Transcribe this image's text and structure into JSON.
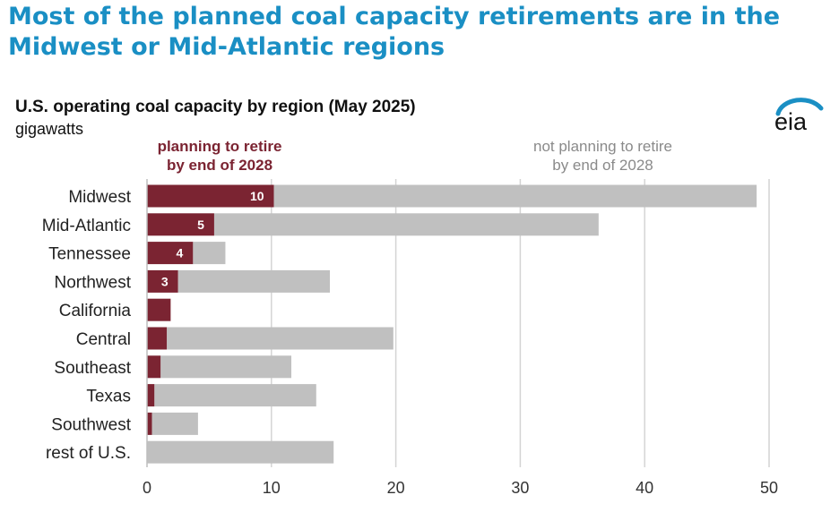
{
  "headline": "Most of the planned coal capacity retirements are in the Midwest or Mid-Atlantic regions",
  "logo_text": "eia",
  "chart_data": {
    "type": "bar",
    "orientation": "horizontal",
    "stacked": true,
    "title": "U.S. operating coal capacity by region (May 2025)",
    "subtitle": "gigawatts",
    "categories": [
      "Midwest",
      "Mid-Atlantic",
      "Tennessee",
      "Northwest",
      "California",
      "Central",
      "Southeast",
      "Texas",
      "Southwest",
      "rest of U.S."
    ],
    "series": [
      {
        "name": "planning to retire by end of 2028",
        "legend_lines": [
          "planning to retire",
          "by end of 2028"
        ],
        "color": "#7b2432",
        "values": [
          10.2,
          5.4,
          3.7,
          2.5,
          1.9,
          1.6,
          1.1,
          0.6,
          0.4,
          0
        ]
      },
      {
        "name": "not planning to retire by end of 2028",
        "legend_lines": [
          "not planning to retire",
          "by end of 2028"
        ],
        "color": "#c0c0c0",
        "values": [
          38.8,
          30.9,
          2.6,
          12.2,
          0,
          18.2,
          10.5,
          13.0,
          3.7,
          15.0
        ]
      }
    ],
    "data_labels": [
      "10",
      "5",
      "4",
      "3",
      "",
      "",
      "",
      "",
      "",
      ""
    ],
    "xlim": [
      0,
      50
    ],
    "xticks": [
      0,
      10,
      20,
      30,
      40,
      50
    ],
    "grid": true
  }
}
